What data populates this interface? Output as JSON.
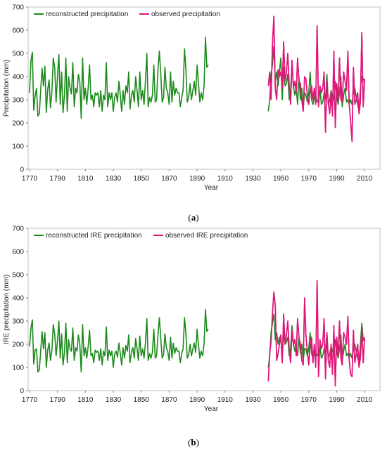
{
  "chart_data": [
    {
      "type": "line",
      "panel_label": "(a)",
      "xlabel": "Year",
      "ylabel": "Precipitation (mm)",
      "xlim": [
        1769,
        2021
      ],
      "ylim": [
        0,
        700
      ],
      "yticks": [
        0,
        100,
        200,
        300,
        400,
        500,
        600,
        700
      ],
      "xticks": [
        1770,
        1790,
        1810,
        1830,
        1850,
        1870,
        1890,
        1910,
        1930,
        1950,
        1970,
        1990,
        2010
      ],
      "grid": false,
      "legend_position": "top-left",
      "series": [
        {
          "name": "reconstructed precipitation",
          "color": "#1b8a1b",
          "x_start": 1770,
          "values": [
            330,
            470,
            505,
            255,
            315,
            350,
            230,
            240,
            345,
            435,
            360,
            445,
            245,
            345,
            385,
            265,
            330,
            480,
            440,
            290,
            400,
            495,
            280,
            420,
            245,
            320,
            480,
            250,
            400,
            350,
            325,
            460,
            270,
            350,
            330,
            410,
            380,
            220,
            480,
            300,
            350,
            280,
            350,
            450,
            300,
            320,
            270,
            330,
            320,
            330,
            270,
            340,
            250,
            320,
            300,
            460,
            270,
            330,
            300,
            330,
            250,
            310,
            330,
            290,
            380,
            320,
            250,
            340,
            280,
            360,
            330,
            420,
            260,
            320,
            340,
            290,
            400,
            340,
            270,
            420,
            300,
            340,
            280,
            380,
            500,
            270,
            310,
            290,
            320,
            450,
            290,
            300,
            430,
            510,
            410,
            290,
            310,
            440,
            350,
            330,
            280,
            420,
            290,
            380,
            320,
            350,
            330,
            330,
            270,
            310,
            340,
            520,
            430,
            290,
            310,
            370,
            300,
            340,
            380,
            320,
            450,
            370,
            290,
            330,
            300,
            360,
            570,
            440,
            450
          ],
          "note_end_year": 1940
        },
        {
          "name": "observed precipitation",
          "color": "#e0157a",
          "x_start": 1941,
          "values": [
            360,
            420,
            300,
            540,
            660,
            350,
            300,
            430,
            400,
            420,
            350,
            550,
            380,
            420,
            500,
            360,
            280,
            470,
            350,
            380,
            330,
            480,
            380,
            370,
            300,
            250,
            400,
            390,
            320,
            280,
            340,
            360,
            300,
            350,
            280,
            620,
            270,
            360,
            330,
            350,
            420,
            160,
            380,
            290,
            240,
            330,
            230,
            510,
            180,
            370,
            300,
            480,
            300,
            290,
            420,
            380,
            340,
            510,
            280,
            210,
            120,
            440,
            280,
            300,
            330,
            240,
            290,
            590,
            270,
            390
          ]
        },
        {
          "name": "reconstructed precipitation",
          "color": "#1b8a1b",
          "x_start": 1941,
          "values": [
            250,
            300,
            410,
            450,
            530,
            380,
            420,
            360,
            420,
            480,
            300,
            440,
            360,
            370,
            410,
            300,
            340,
            460,
            360,
            320,
            350,
            280,
            400,
            300,
            350,
            260,
            330,
            320,
            290,
            330,
            420,
            300,
            280,
            310,
            320,
            290,
            300,
            350,
            280,
            290,
            330,
            300,
            410,
            280,
            300,
            340,
            310,
            300,
            380,
            310,
            280,
            330,
            400,
            270,
            320,
            350,
            290,
            300,
            280,
            300,
            280,
            330,
            350,
            310,
            280,
            250,
            350,
            400,
            390,
            380
          ]
        }
      ]
    },
    {
      "type": "line",
      "panel_label": "(b)",
      "xlabel": "Year",
      "ylabel": "IRE precipitation (mm)",
      "xlim": [
        1769,
        2021
      ],
      "ylim": [
        0,
        700
      ],
      "yticks": [
        0,
        100,
        200,
        300,
        400,
        500,
        600,
        700
      ],
      "xticks": [
        1770,
        1790,
        1810,
        1830,
        1850,
        1870,
        1890,
        1910,
        1930,
        1950,
        1970,
        1990,
        2010
      ],
      "grid": false,
      "legend_position": "top-left",
      "series": [
        {
          "name": "reconstructed IRE precipitation",
          "color": "#1b8a1b",
          "x_start": 1770,
          "values": [
            190,
            270,
            305,
            115,
            175,
            180,
            80,
            90,
            175,
            255,
            180,
            250,
            100,
            175,
            205,
            130,
            170,
            285,
            245,
            150,
            215,
            300,
            140,
            245,
            110,
            165,
            290,
            120,
            220,
            180,
            170,
            270,
            130,
            185,
            170,
            240,
            200,
            80,
            285,
            150,
            185,
            140,
            190,
            260,
            150,
            160,
            120,
            175,
            165,
            170,
            130,
            180,
            110,
            170,
            150,
            275,
            130,
            175,
            150,
            170,
            100,
            160,
            170,
            145,
            205,
            160,
            110,
            185,
            140,
            195,
            170,
            240,
            120,
            165,
            185,
            140,
            225,
            180,
            130,
            235,
            150,
            180,
            140,
            205,
            310,
            130,
            160,
            140,
            165,
            265,
            140,
            150,
            240,
            315,
            225,
            140,
            155,
            245,
            185,
            170,
            130,
            230,
            140,
            205,
            160,
            185,
            170,
            170,
            120,
            160,
            180,
            315,
            245,
            140,
            155,
            200,
            150,
            180,
            205,
            165,
            265,
            195,
            140,
            170,
            150,
            200,
            350,
            255,
            265
          ],
          "note_end_year": 1940
        },
        {
          "name": "observed IRE precipitation",
          "color": "#e0157a",
          "x_start": 1941,
          "values": [
            40,
            160,
            210,
            330,
            425,
            370,
            130,
            160,
            200,
            240,
            120,
            330,
            200,
            240,
            300,
            180,
            120,
            260,
            200,
            220,
            150,
            310,
            230,
            200,
            130,
            110,
            400,
            240,
            170,
            110,
            200,
            230,
            120,
            200,
            100,
            475,
            60,
            220,
            180,
            200,
            310,
            50,
            250,
            130,
            100,
            200,
            70,
            280,
            20,
            230,
            150,
            300,
            140,
            110,
            250,
            230,
            200,
            320,
            130,
            70,
            60,
            260,
            120,
            160,
            200,
            100,
            140,
            270,
            120,
            230
          ]
        },
        {
          "name": "reconstructed IRE precipitation",
          "color": "#1b8a1b",
          "x_start": 1941,
          "values": [
            100,
            150,
            250,
            290,
            330,
            220,
            250,
            200,
            230,
            220,
            140,
            250,
            200,
            210,
            230,
            150,
            180,
            280,
            200,
            170,
            190,
            150,
            230,
            160,
            200,
            130,
            180,
            180,
            150,
            180,
            250,
            160,
            140,
            160,
            170,
            150,
            160,
            190,
            140,
            150,
            180,
            160,
            250,
            140,
            160,
            190,
            170,
            150,
            220,
            170,
            140,
            180,
            240,
            130,
            170,
            200,
            150,
            160,
            140,
            160,
            140,
            180,
            200,
            170,
            140,
            120,
            200,
            290,
            220,
            210
          ]
        }
      ]
    }
  ],
  "panels": {
    "a": {
      "caption_open": "(",
      "caption_letter": "a",
      "caption_close": ")"
    },
    "b": {
      "caption_open": "(",
      "caption_letter": "b",
      "caption_close": ")"
    }
  }
}
